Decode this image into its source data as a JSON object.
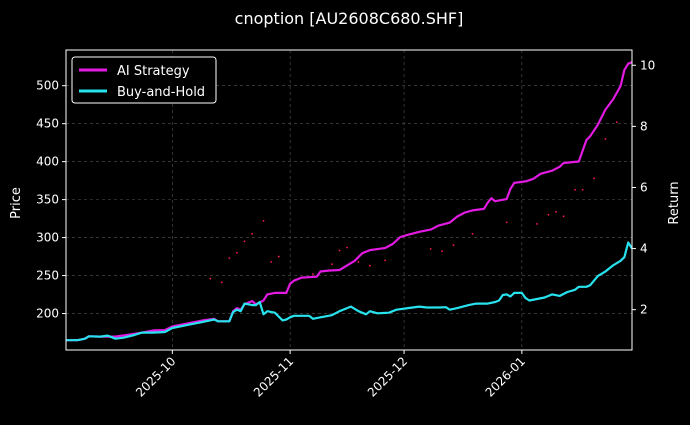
{
  "colors": {
    "background": "#000000",
    "text": "#ffffff",
    "grid": "#555555",
    "ai_strategy": "#e21be2",
    "buy_and_hold": "#27e3ee",
    "scatter": "#ff1a4d"
  },
  "chart_data": {
    "type": "line",
    "title": "cnoption [AU2608C680.SHF]",
    "xlabel": "",
    "ylabel": "Price",
    "y2label": "Return",
    "grid": true,
    "legend_position": "top-left",
    "x_tick_labels": [
      "2025-10",
      "2025-11",
      "2025-12",
      "2026-01"
    ],
    "x_ticks": [
      "2025-10-01",
      "2025-11-01",
      "2025-12-01",
      "2026-01-01"
    ],
    "xlim": [
      "2025-09-03",
      "2026-01-30"
    ],
    "ylim": [
      152,
      547
    ],
    "y_ticks": [
      200,
      250,
      300,
      350,
      400,
      450,
      500
    ],
    "y2lim": [
      0.68,
      10.5
    ],
    "y2_ticks": [
      2,
      4,
      6,
      8,
      10
    ],
    "series": [
      {
        "name": "AI Strategy",
        "axis": "right",
        "points": [
          [
            "2025-09-03",
            1.0
          ],
          [
            "2025-09-06",
            1.0
          ],
          [
            "2025-09-08",
            1.05
          ],
          [
            "2025-09-09",
            1.13
          ],
          [
            "2025-09-12",
            1.12
          ],
          [
            "2025-09-16",
            1.12
          ],
          [
            "2025-09-19",
            1.17
          ],
          [
            "2025-09-23",
            1.25
          ],
          [
            "2025-09-26",
            1.32
          ],
          [
            "2025-09-29",
            1.33
          ],
          [
            "2025-10-01",
            1.45
          ],
          [
            "2025-10-05",
            1.55
          ],
          [
            "2025-10-09",
            1.65
          ],
          [
            "2025-10-12",
            1.7
          ],
          [
            "2025-10-13",
            1.62
          ],
          [
            "2025-10-16",
            1.62
          ],
          [
            "2025-10-17",
            1.95
          ],
          [
            "2025-10-18",
            2.05
          ],
          [
            "2025-10-19",
            2.0
          ],
          [
            "2025-10-20",
            2.18
          ],
          [
            "2025-10-22",
            2.28
          ],
          [
            "2025-10-23",
            2.18
          ],
          [
            "2025-10-25",
            2.3
          ],
          [
            "2025-10-26",
            2.5
          ],
          [
            "2025-10-28",
            2.55
          ],
          [
            "2025-10-31",
            2.55
          ],
          [
            "2025-11-01",
            2.85
          ],
          [
            "2025-11-02",
            2.95
          ],
          [
            "2025-11-04",
            3.05
          ],
          [
            "2025-11-08",
            3.08
          ],
          [
            "2025-11-09",
            3.25
          ],
          [
            "2025-11-11",
            3.28
          ],
          [
            "2025-11-14",
            3.3
          ],
          [
            "2025-11-16",
            3.45
          ],
          [
            "2025-11-18",
            3.6
          ],
          [
            "2025-11-20",
            3.85
          ],
          [
            "2025-11-22",
            3.95
          ],
          [
            "2025-11-26",
            4.02
          ],
          [
            "2025-11-28",
            4.15
          ],
          [
            "2025-11-30",
            4.38
          ],
          [
            "2025-12-02",
            4.45
          ],
          [
            "2025-12-05",
            4.55
          ],
          [
            "2025-12-08",
            4.62
          ],
          [
            "2025-12-10",
            4.75
          ],
          [
            "2025-12-13",
            4.85
          ],
          [
            "2025-12-15",
            5.05
          ],
          [
            "2025-12-17",
            5.18
          ],
          [
            "2025-12-19",
            5.25
          ],
          [
            "2025-12-22",
            5.3
          ],
          [
            "2025-12-23",
            5.5
          ],
          [
            "2025-12-24",
            5.65
          ],
          [
            "2025-12-25",
            5.55
          ],
          [
            "2025-12-28",
            5.62
          ],
          [
            "2025-12-29",
            5.95
          ],
          [
            "2025-12-30",
            6.15
          ],
          [
            "2026-01-02",
            6.2
          ],
          [
            "2026-01-04",
            6.28
          ],
          [
            "2026-01-06",
            6.45
          ],
          [
            "2026-01-09",
            6.55
          ],
          [
            "2026-01-11",
            6.68
          ],
          [
            "2026-01-12",
            6.8
          ],
          [
            "2026-01-16",
            6.85
          ],
          [
            "2026-01-18",
            7.55
          ],
          [
            "2026-01-19",
            7.68
          ],
          [
            "2026-01-21",
            8.05
          ],
          [
            "2026-01-23",
            8.55
          ],
          [
            "2026-01-25",
            8.88
          ],
          [
            "2026-01-27",
            9.32
          ],
          [
            "2026-01-28",
            9.85
          ],
          [
            "2026-01-29",
            10.05
          ],
          [
            "2026-01-30",
            10.1
          ]
        ]
      },
      {
        "name": "Buy-and-Hold",
        "axis": "right",
        "points": [
          [
            "2025-09-03",
            1.0
          ],
          [
            "2025-09-06",
            1.0
          ],
          [
            "2025-09-08",
            1.05
          ],
          [
            "2025-09-09",
            1.13
          ],
          [
            "2025-09-12",
            1.12
          ],
          [
            "2025-09-14",
            1.15
          ],
          [
            "2025-09-16",
            1.05
          ],
          [
            "2025-09-18",
            1.08
          ],
          [
            "2025-09-21",
            1.17
          ],
          [
            "2025-09-23",
            1.25
          ],
          [
            "2025-09-26",
            1.25
          ],
          [
            "2025-09-29",
            1.27
          ],
          [
            "2025-10-01",
            1.4
          ],
          [
            "2025-10-05",
            1.5
          ],
          [
            "2025-10-09",
            1.6
          ],
          [
            "2025-10-12",
            1.68
          ],
          [
            "2025-10-13",
            1.62
          ],
          [
            "2025-10-16",
            1.62
          ],
          [
            "2025-10-17",
            1.92
          ],
          [
            "2025-10-18",
            2.0
          ],
          [
            "2025-10-19",
            1.95
          ],
          [
            "2025-10-20",
            2.2
          ],
          [
            "2025-10-22",
            2.15
          ],
          [
            "2025-10-23",
            2.15
          ],
          [
            "2025-10-24",
            2.25
          ],
          [
            "2025-10-25",
            1.85
          ],
          [
            "2025-10-26",
            1.95
          ],
          [
            "2025-10-28",
            1.9
          ],
          [
            "2025-10-30",
            1.65
          ],
          [
            "2025-10-31",
            1.68
          ],
          [
            "2025-11-01",
            1.75
          ],
          [
            "2025-11-02",
            1.8
          ],
          [
            "2025-11-06",
            1.8
          ],
          [
            "2025-11-07",
            1.7
          ],
          [
            "2025-11-09",
            1.75
          ],
          [
            "2025-11-12",
            1.82
          ],
          [
            "2025-11-14",
            1.95
          ],
          [
            "2025-11-16",
            2.05
          ],
          [
            "2025-11-17",
            2.1
          ],
          [
            "2025-11-19",
            1.95
          ],
          [
            "2025-11-21",
            1.85
          ],
          [
            "2025-11-22",
            1.95
          ],
          [
            "2025-11-24",
            1.88
          ],
          [
            "2025-11-27",
            1.9
          ],
          [
            "2025-11-29",
            2.0
          ],
          [
            "2025-12-02",
            2.05
          ],
          [
            "2025-12-05",
            2.1
          ],
          [
            "2025-12-07",
            2.07
          ],
          [
            "2025-12-10",
            2.07
          ],
          [
            "2025-12-12",
            2.08
          ],
          [
            "2025-12-13",
            2.0
          ],
          [
            "2025-12-15",
            2.05
          ],
          [
            "2025-12-18",
            2.15
          ],
          [
            "2025-12-20",
            2.2
          ],
          [
            "2025-12-23",
            2.2
          ],
          [
            "2025-12-25",
            2.25
          ],
          [
            "2025-12-26",
            2.3
          ],
          [
            "2025-12-27",
            2.48
          ],
          [
            "2025-12-28",
            2.5
          ],
          [
            "2025-12-29",
            2.43
          ],
          [
            "2025-12-30",
            2.55
          ],
          [
            "2026-01-01",
            2.55
          ],
          [
            "2026-01-02",
            2.38
          ],
          [
            "2026-01-03",
            2.3
          ],
          [
            "2026-01-05",
            2.35
          ],
          [
            "2026-01-07",
            2.4
          ],
          [
            "2026-01-09",
            2.5
          ],
          [
            "2026-01-11",
            2.45
          ],
          [
            "2026-01-13",
            2.58
          ],
          [
            "2026-01-15",
            2.65
          ],
          [
            "2026-01-16",
            2.75
          ],
          [
            "2026-01-18",
            2.75
          ],
          [
            "2026-01-19",
            2.8
          ],
          [
            "2026-01-21",
            3.1
          ],
          [
            "2026-01-23",
            3.25
          ],
          [
            "2026-01-25",
            3.45
          ],
          [
            "2026-01-27",
            3.6
          ],
          [
            "2026-01-28",
            3.72
          ],
          [
            "2026-01-29",
            4.2
          ],
          [
            "2026-01-30",
            4.0
          ]
        ]
      }
    ],
    "scatter_points": [
      [
        "2025-10-11",
        246
      ],
      [
        "2025-10-14",
        241
      ],
      [
        "2025-10-16",
        273
      ],
      [
        "2025-10-18",
        280
      ],
      [
        "2025-10-20",
        295
      ],
      [
        "2025-10-22",
        305
      ],
      [
        "2025-10-25",
        322
      ],
      [
        "2025-10-27",
        268
      ],
      [
        "2025-10-29",
        275
      ],
      [
        "2025-11-07",
        252
      ],
      [
        "2025-11-12",
        265
      ],
      [
        "2025-11-14",
        283
      ],
      [
        "2025-11-16",
        287
      ],
      [
        "2025-11-19",
        268
      ],
      [
        "2025-11-22",
        263
      ],
      [
        "2025-11-26",
        270
      ],
      [
        "2025-12-08",
        285
      ],
      [
        "2025-12-11",
        282
      ],
      [
        "2025-12-14",
        290
      ],
      [
        "2025-12-19",
        305
      ],
      [
        "2025-12-28",
        320
      ],
      [
        "2026-01-05",
        318
      ],
      [
        "2026-01-08",
        330
      ],
      [
        "2026-01-10",
        334
      ],
      [
        "2026-01-12",
        328
      ],
      [
        "2026-01-15",
        363
      ],
      [
        "2026-01-17",
        363
      ],
      [
        "2026-01-20",
        378
      ],
      [
        "2026-01-23",
        430
      ],
      [
        "2026-01-26",
        452
      ],
      [
        "2026-01-29",
        528
      ]
    ]
  }
}
